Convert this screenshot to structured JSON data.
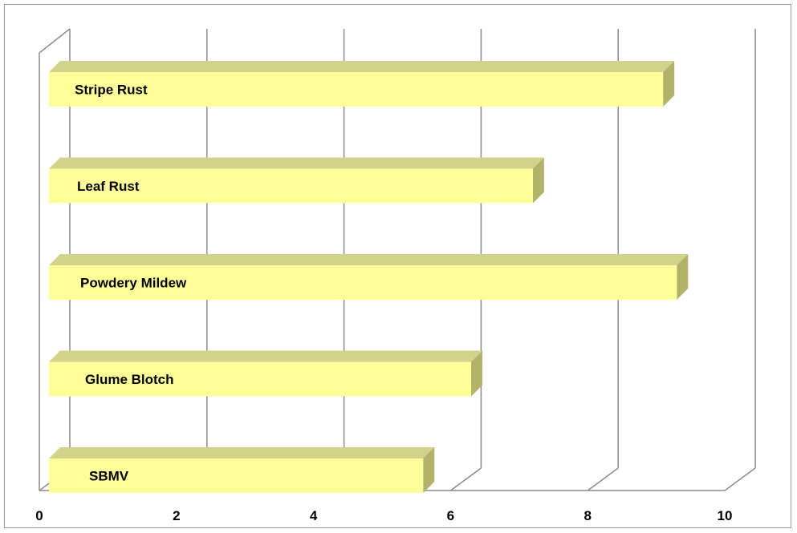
{
  "chart_data": {
    "type": "bar",
    "orientation": "horizontal",
    "style": "3d",
    "categories": [
      "Stripe Rust",
      "Leaf Rust",
      "Powdery Mildew",
      "Glume Blotch",
      "SBMV"
    ],
    "values": [
      9.1,
      7.2,
      9.3,
      6.3,
      5.6
    ],
    "xlim": [
      0,
      10
    ],
    "xticks": [
      0,
      2,
      4,
      6,
      8,
      10
    ],
    "title": "",
    "xlabel": "",
    "ylabel": "",
    "grid": true,
    "legend": "none",
    "colors": {
      "bar_front": "#ffff99",
      "bar_top": "#d2d28a",
      "bar_side": "#b2b26a",
      "gridline": "#8c8c8c"
    }
  }
}
